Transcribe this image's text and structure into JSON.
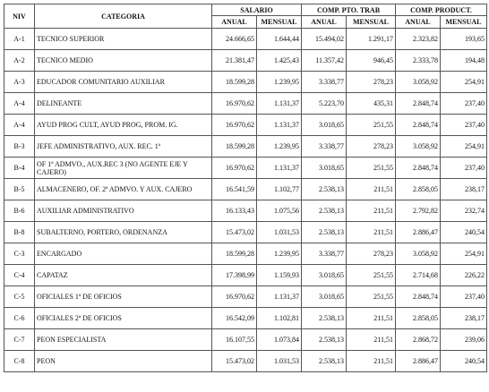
{
  "header": {
    "niv": "NIV",
    "categoria": "CATEGORIA",
    "salario": "SALARIO",
    "comp_pto": "COMP. PTO. TRAB",
    "comp_prod": "COMP. PRODUCT.",
    "anual": "ANUAL",
    "mensual": "MENSUAL"
  },
  "rows": [
    {
      "niv": "A-1",
      "categoria": "TECNICO SUPERIOR",
      "sal_anual": "24.666,65",
      "sal_mensual": "1.644,44",
      "pto_anual": "15.494,02",
      "pto_mensual": "1.291,17",
      "prod_anual": "2.323,82",
      "prod_mensual": "193,65"
    },
    {
      "niv": "A-2",
      "categoria": "TECNICO MEDIO",
      "sal_anual": "21.381,47",
      "sal_mensual": "1.425,43",
      "pto_anual": "11.357,42",
      "pto_mensual": "946,45",
      "prod_anual": "2.333,78",
      "prod_mensual": "194,48"
    },
    {
      "niv": "A-3",
      "categoria": "EDUCADOR COMUNITARIO AUXILIAR",
      "sal_anual": "18.599,28",
      "sal_mensual": "1.239,95",
      "pto_anual": "3.338,77",
      "pto_mensual": "278,23",
      "prod_anual": "3.058,92",
      "prod_mensual": "254,91"
    },
    {
      "niv": "A-4",
      "categoria": "DELINEANTE",
      "sal_anual": "16.970,62",
      "sal_mensual": "1.131,37",
      "pto_anual": "5.223,70",
      "pto_mensual": "435,31",
      "prod_anual": "2.848,74",
      "prod_mensual": "237,40"
    },
    {
      "niv": "A-4",
      "categoria": "AYUD PROG CULT, AYUD PROG, PROM. IG.",
      "sal_anual": "16.970,62",
      "sal_mensual": "1.131,37",
      "pto_anual": "3.018,65",
      "pto_mensual": "251,55",
      "prod_anual": "2.848,74",
      "prod_mensual": "237,40"
    },
    {
      "niv": "B-3",
      "categoria": "JEFE ADMINISTRATIVO, AUX. REC. 1ª",
      "sal_anual": "18.599,28",
      "sal_mensual": "1.239,95",
      "pto_anual": "3.338,77",
      "pto_mensual": "278,23",
      "prod_anual": "3.058,92",
      "prod_mensual": "254,91"
    },
    {
      "niv": "B-4",
      "categoria": "OF 1ª ADMVO., AUX.REC 3 (NO AGENTE EJE Y CAJERO)",
      "sal_anual": "16.970,62",
      "sal_mensual": "1.131,37",
      "pto_anual": "3.018,65",
      "pto_mensual": "251,55",
      "prod_anual": "2.848,74",
      "prod_mensual": "237,40"
    },
    {
      "niv": "B-5",
      "categoria": "ALMACENERO, OF. 2ª ADMVO. Y AUX. CAJERO",
      "sal_anual": "16.541,59",
      "sal_mensual": "1.102,77",
      "pto_anual": "2.538,13",
      "pto_mensual": "211,51",
      "prod_anual": "2.858,05",
      "prod_mensual": "238,17"
    },
    {
      "niv": "B-6",
      "categoria": "AUXILIAR ADMINISTRATIVO",
      "sal_anual": "16.133,43",
      "sal_mensual": "1.075,56",
      "pto_anual": "2.538,13",
      "pto_mensual": "211,51",
      "prod_anual": "2.792,82",
      "prod_mensual": "232,74"
    },
    {
      "niv": "B-8",
      "categoria": "SUBALTERNO, PORTERO, ORDENANZA",
      "sal_anual": "15.473,02",
      "sal_mensual": "1.031,53",
      "pto_anual": "2.538,13",
      "pto_mensual": "211,51",
      "prod_anual": "2.886,47",
      "prod_mensual": "240,54"
    },
    {
      "niv": "C-3",
      "categoria": "ENCARGADO",
      "sal_anual": "18.599,28",
      "sal_mensual": "1.239,95",
      "pto_anual": "3.338,77",
      "pto_mensual": "278,23",
      "prod_anual": "3.058,92",
      "prod_mensual": "254,91"
    },
    {
      "niv": "C-4",
      "categoria": "CAPATAZ",
      "sal_anual": "17.398,99",
      "sal_mensual": "1.159,93",
      "pto_anual": "3.018,65",
      "pto_mensual": "251,55",
      "prod_anual": "2.714,68",
      "prod_mensual": "226,22"
    },
    {
      "niv": "C-5",
      "categoria": "OFICIALES 1ª DE OFICIOS",
      "sal_anual": "16.970,62",
      "sal_mensual": "1.131,37",
      "pto_anual": "3.018,65",
      "pto_mensual": "251,55",
      "prod_anual": "2.848,74",
      "prod_mensual": "237,40"
    },
    {
      "niv": "C-6",
      "categoria": "OFICIALES 2ª DE OFICIOS",
      "sal_anual": "16.542,09",
      "sal_mensual": "1.102,81",
      "pto_anual": "2.538,13",
      "pto_mensual": "211,51",
      "prod_anual": "2.858,05",
      "prod_mensual": "238,17"
    },
    {
      "niv": "C-7",
      "categoria": "PEON ESPECIALISTA",
      "sal_anual": "16.107,55",
      "sal_mensual": "1.073,84",
      "pto_anual": "2.538,13",
      "pto_mensual": "211,51",
      "prod_anual": "2.868,72",
      "prod_mensual": "239,06"
    },
    {
      "niv": "C-8",
      "categoria": "PEON",
      "sal_anual": "15.473,02",
      "sal_mensual": "1.031,53",
      "pto_anual": "2.538,13",
      "pto_mensual": "211,51",
      "prod_anual": "2.886,47",
      "prod_mensual": "240,54"
    }
  ]
}
